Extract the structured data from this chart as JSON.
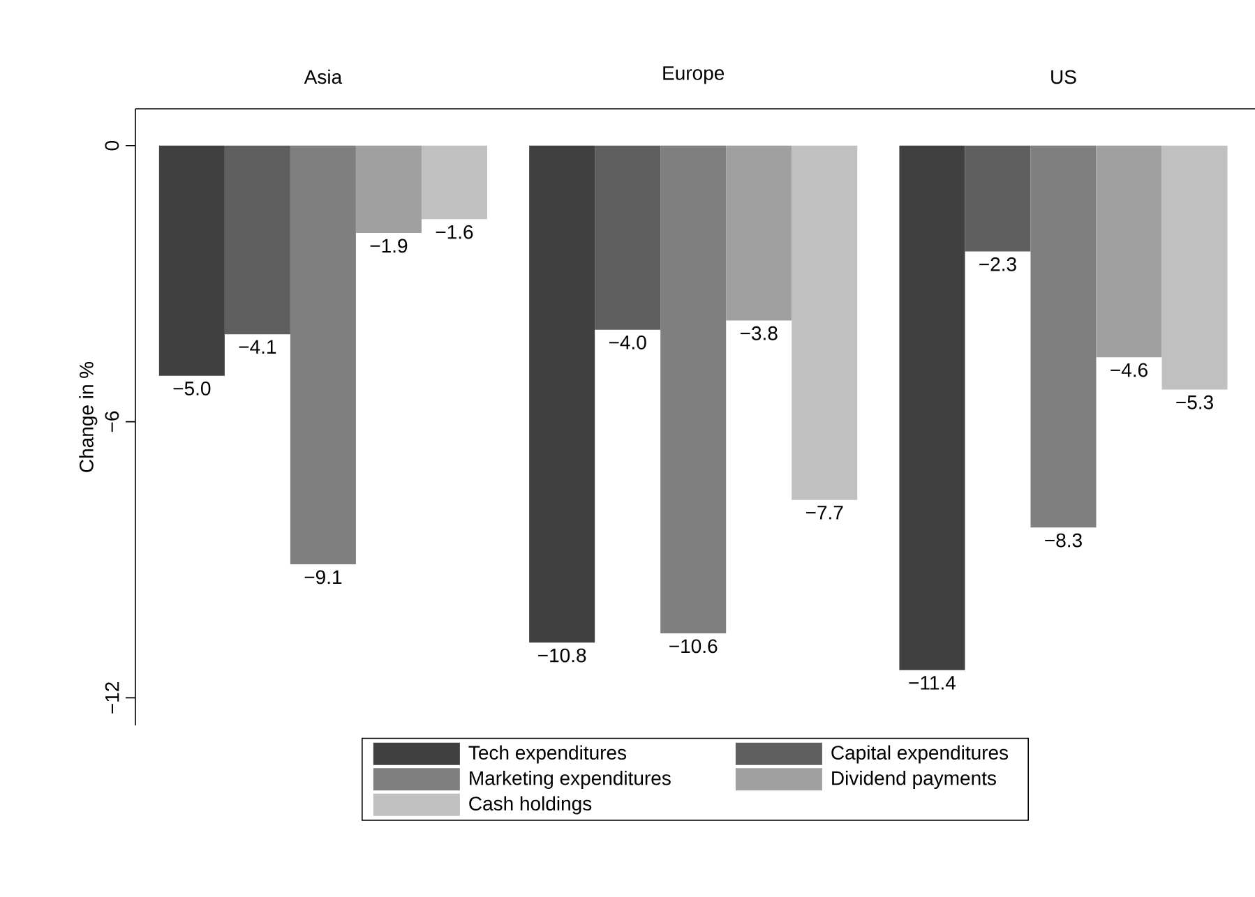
{
  "chart_data": {
    "type": "bar",
    "ylabel": "Change in %",
    "categories": [
      "Asia",
      "Europe",
      "US"
    ],
    "series": [
      {
        "name": "Tech expenditures",
        "color": "#404040",
        "values": [
          -5.0,
          -10.8,
          -11.4
        ],
        "value_labels": [
          "−5.0",
          "−10.8",
          "−11.4"
        ]
      },
      {
        "name": "Capital expenditures",
        "color": "#5f5f5f",
        "values": [
          -4.1,
          -4.0,
          -2.3
        ],
        "value_labels": [
          "−4.1",
          "−4.0",
          "−2.3"
        ]
      },
      {
        "name": "Marketing expenditures",
        "color": "#7f7f7f",
        "values": [
          -9.1,
          -10.6,
          -8.3
        ],
        "value_labels": [
          "−9.1",
          "−10.6",
          "−8.3"
        ]
      },
      {
        "name": "Dividend payments",
        "color": "#a0a0a0",
        "values": [
          -1.9,
          -3.8,
          -4.6
        ],
        "value_labels": [
          "−1.9",
          "−3.8",
          "−4.6"
        ]
      },
      {
        "name": "Cash holdings",
        "color": "#c0c0c0",
        "values": [
          -1.6,
          -7.7,
          -5.3
        ],
        "value_labels": [
          "−1.6",
          "−7.7",
          "−5.3"
        ]
      }
    ],
    "ylim": [
      -12.6,
      0.8
    ],
    "yticks": [
      0,
      {
        "value": -6,
        "label": "−6"
      },
      {
        "value": -12,
        "label": "−12"
      }
    ],
    "legend": "bottom"
  }
}
